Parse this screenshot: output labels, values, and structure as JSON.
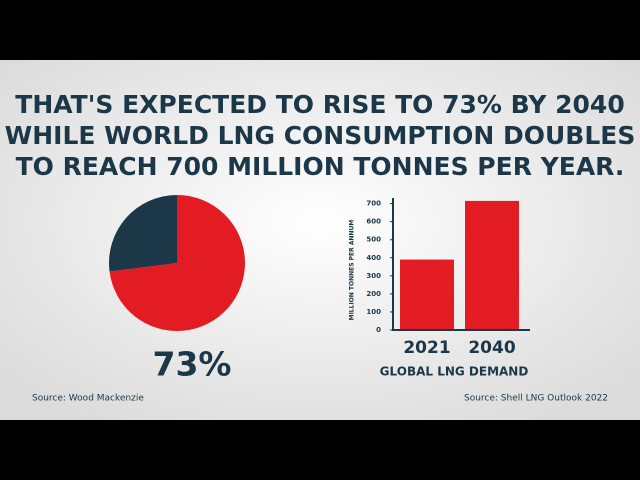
{
  "headline": [
    "THAT'S EXPECTED TO RISE TO 73% BY 2040",
    "WHILE WORLD LNG CONSUMPTION DOUBLES",
    "TO REACH 700 MILLION TONNES PER YEAR."
  ],
  "chart_data": [
    {
      "type": "pie",
      "values": [
        73,
        27
      ],
      "value_labels": [
        "73%",
        null
      ],
      "colors": [
        "#e31b23",
        "#1b3748"
      ],
      "source": "Source: Wood Mackenzie"
    },
    {
      "type": "bar",
      "categories": [
        "2021",
        "2040"
      ],
      "values": [
        390,
        715
      ],
      "color": "#e31b23",
      "ylim": [
        0,
        720
      ],
      "yticks": [
        0,
        100,
        200,
        300,
        400,
        500,
        600,
        700
      ],
      "ylabel": "MILLION TONNES PER ANNUM",
      "xlabel": "GLOBAL LNG DEMAND",
      "source": "Source: Shell LNG Outlook 2022"
    }
  ]
}
